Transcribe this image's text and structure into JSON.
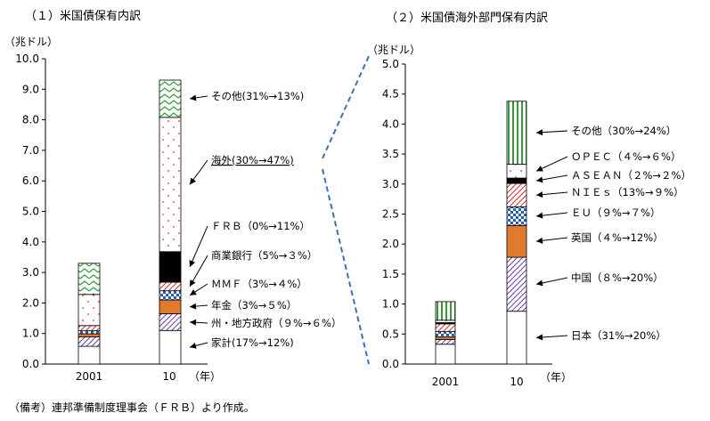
{
  "figure": {
    "note": "（備考）連邦準備制度理事会（ＦＲＢ）より作成。",
    "connector_color": "#3a6fbf"
  },
  "chart_data": [
    {
      "type": "bar",
      "stacked": true,
      "title": "（１）米国債保有内訳",
      "ylabel": "（兆ドル）",
      "xlabel": "（年）",
      "categories": [
        "2001",
        "10"
      ],
      "ylim": [
        0,
        10
      ],
      "yticks": [
        "0.0",
        "1.0",
        "2.0",
        "3.0",
        "4.0",
        "5.0",
        "6.0",
        "7.0",
        "8.0",
        "9.0",
        "10.0"
      ],
      "grid": false,
      "series": [
        {
          "name": "家計",
          "values": [
            0.58,
            1.1
          ],
          "pattern": "plain"
        },
        {
          "name": "州・地方政府",
          "values": [
            0.31,
            0.55
          ],
          "pattern": "diag-purple"
        },
        {
          "name": "年金",
          "values": [
            0.1,
            0.45
          ],
          "pattern": "orange"
        },
        {
          "name": "ＭＭＦ",
          "values": [
            0.1,
            0.3
          ],
          "pattern": "blue-check"
        },
        {
          "name": "商業銀行",
          "values": [
            0.17,
            0.28
          ],
          "pattern": "diag-red"
        },
        {
          "name": "ＦＲＢ",
          "values": [
            0.0,
            1.0
          ],
          "pattern": "black"
        },
        {
          "name": "海外",
          "values": [
            1.02,
            4.4
          ],
          "pattern": "red-dots"
        },
        {
          "name": "その他",
          "values": [
            1.02,
            1.22
          ],
          "pattern": "green-zigzag"
        }
      ],
      "annotations": [
        {
          "series": "その他",
          "text": "その他(31%→13%)"
        },
        {
          "series": "海外",
          "text": "海外(30%→47%)"
        },
        {
          "series": "ＦＲＢ",
          "text": "ＦＲＢ（0%→11%）"
        },
        {
          "series": "商業銀行",
          "text": "商業銀行（5%→３%）"
        },
        {
          "series": "ＭＭＦ",
          "text": "ＭＭＦ（3%→４%）"
        },
        {
          "series": "年金",
          "text": "年金（3%→５%）"
        },
        {
          "series": "州・地方政府",
          "text": "州・地方政府（９%→６%）"
        },
        {
          "series": "家計",
          "text": "家計(17%→12%)"
        }
      ]
    },
    {
      "type": "bar",
      "stacked": true,
      "title": "（２）米国債海外部門保有内訳",
      "ylabel": "（兆ドル）",
      "xlabel": "（年）",
      "categories": [
        "2001",
        "10"
      ],
      "ylim": [
        0,
        5
      ],
      "yticks": [
        "0.0",
        "0.5",
        "1.0",
        "1.5",
        "2.0",
        "2.5",
        "3.0",
        "3.5",
        "4.0",
        "4.5",
        "5.0"
      ],
      "grid": false,
      "series": [
        {
          "name": "日本",
          "values": [
            0.33,
            0.88
          ],
          "pattern": "plain"
        },
        {
          "name": "中国",
          "values": [
            0.08,
            0.9
          ],
          "pattern": "diag-purple"
        },
        {
          "name": "英国",
          "values": [
            0.04,
            0.53
          ],
          "pattern": "orange"
        },
        {
          "name": "ＥＵ",
          "values": [
            0.09,
            0.31
          ],
          "pattern": "blue-check"
        },
        {
          "name": "ＮＩＥｓ",
          "values": [
            0.13,
            0.39
          ],
          "pattern": "diag-red"
        },
        {
          "name": "ＡＳＥＡＮ",
          "values": [
            0.02,
            0.09
          ],
          "pattern": "black"
        },
        {
          "name": "ＯＰＥＣ",
          "values": [
            0.04,
            0.23
          ],
          "pattern": "red-dots"
        },
        {
          "name": "その他",
          "values": [
            0.31,
            1.05
          ],
          "pattern": "green-stripes"
        }
      ],
      "annotations": [
        {
          "series": "その他",
          "text": "その他（30%→24%）"
        },
        {
          "series": "ＯＰＥＣ",
          "text": "ＯＰＥＣ（４%→６%）"
        },
        {
          "series": "ＡＳＥＡＮ",
          "text": "ＡＳＥＡＮ（２%→２%）"
        },
        {
          "series": "ＮＩＥｓ",
          "text": "ＮＩＥｓ（13%→９%）"
        },
        {
          "series": "ＥＵ",
          "text": "ＥＵ（９%→７%）"
        },
        {
          "series": "英国",
          "text": "英国（４%→12%）"
        },
        {
          "series": "中国",
          "text": "中国（８%→20%）"
        },
        {
          "series": "日本",
          "text": "日本（31%→20%）"
        }
      ]
    }
  ]
}
